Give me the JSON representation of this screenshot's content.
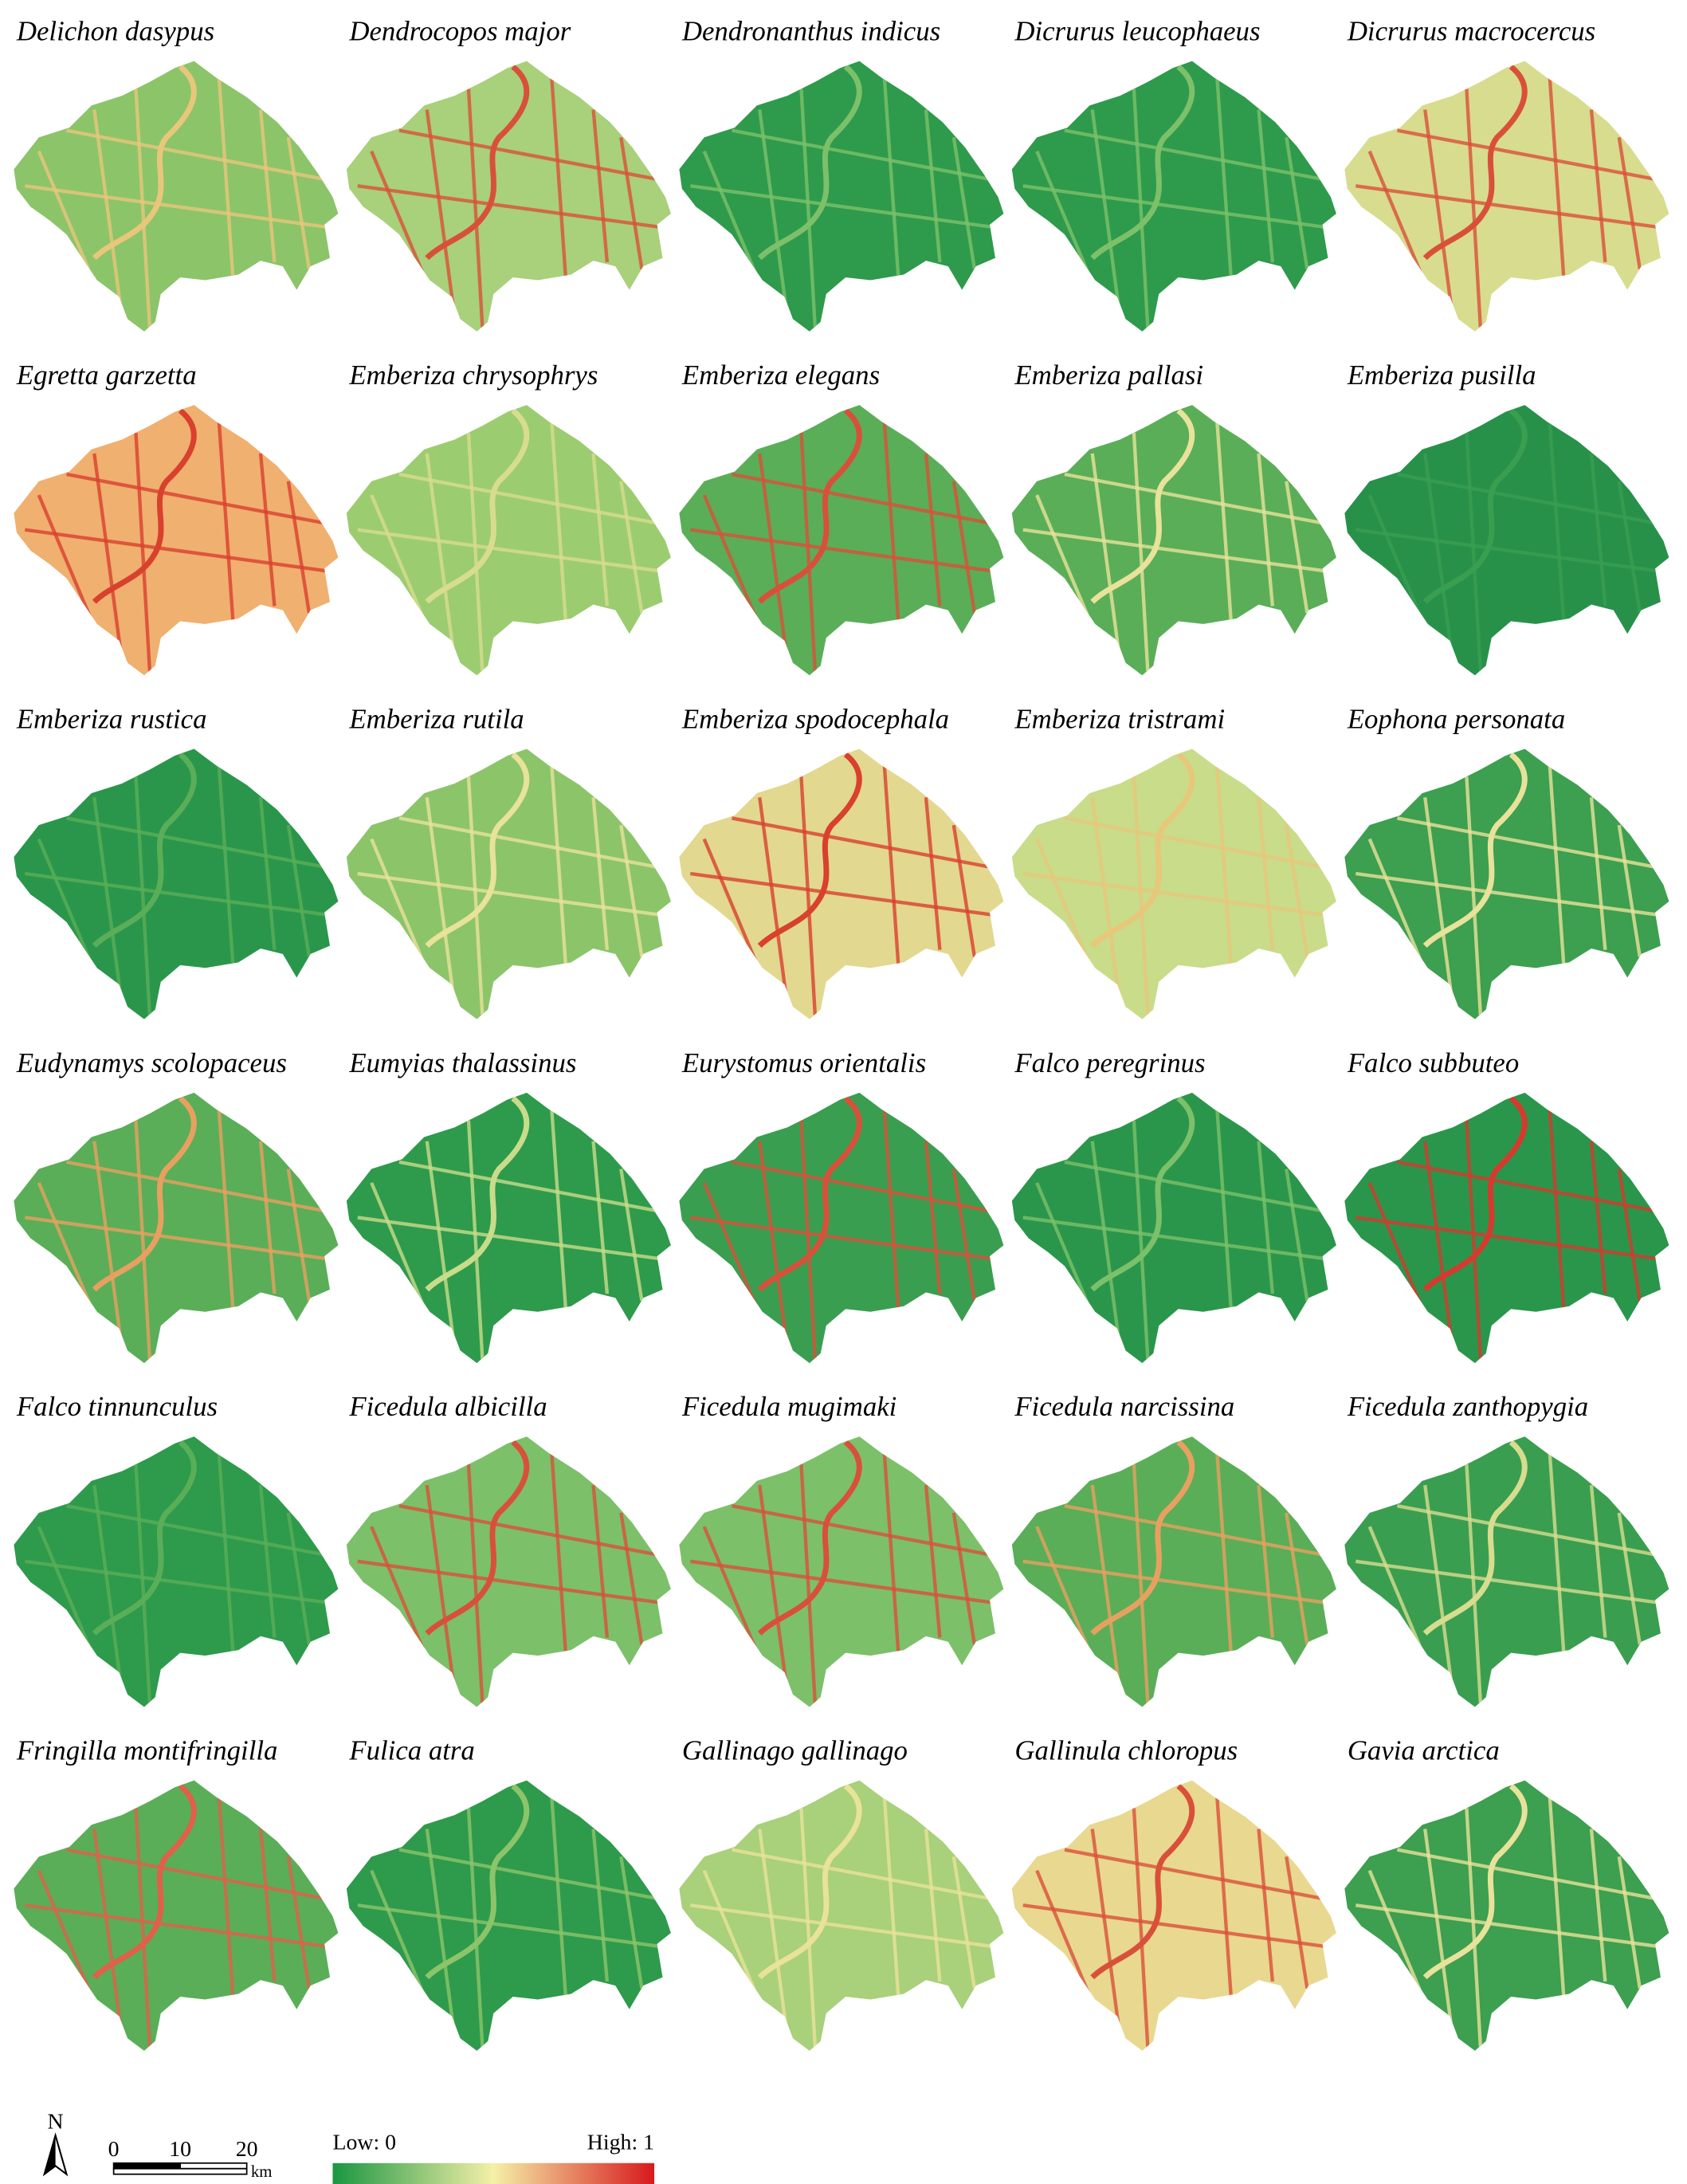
{
  "maps": [
    {
      "title": "Delichon dasypus",
      "color": "#8cc46a",
      "accent": "#e8c77a"
    },
    {
      "title": "Dendrocopos major",
      "color": "#a9d07a",
      "accent": "#d9503a"
    },
    {
      "title": "Dendronanthus indicus",
      "color": "#2e9a4c",
      "accent": "#7cc06a"
    },
    {
      "title": "Dicrurus leucophaeus",
      "color": "#2e9a4c",
      "accent": "#7cc06a"
    },
    {
      "title": "Dicrurus macrocercus",
      "color": "#d8dc8e",
      "accent": "#d9503a"
    },
    {
      "title": "Egretta garzetta",
      "color": "#f0b070",
      "accent": "#d9402e"
    },
    {
      "title": "Emberiza chrysophrys",
      "color": "#9ccc70",
      "accent": "#d8dc8e"
    },
    {
      "title": "Emberiza elegans",
      "color": "#5aae58",
      "accent": "#d9503a"
    },
    {
      "title": "Emberiza pallasi",
      "color": "#5aae58",
      "accent": "#e8e29a"
    },
    {
      "title": "Emberiza pusilla",
      "color": "#27914a",
      "accent": "#3a9e50"
    },
    {
      "title": "Emberiza rustica",
      "color": "#2a964b",
      "accent": "#5aae58"
    },
    {
      "title": "Emberiza rutila",
      "color": "#8cc46a",
      "accent": "#e8e29a"
    },
    {
      "title": "Emberiza spodocephala",
      "color": "#e2d890",
      "accent": "#d9402e"
    },
    {
      "title": "Emberiza tristrami",
      "color": "#c8dc8a",
      "accent": "#e8c77a"
    },
    {
      "title": "Eophona personata",
      "color": "#3d9f50",
      "accent": "#e8e29a"
    },
    {
      "title": "Eudynamys scolopaceus",
      "color": "#5aae58",
      "accent": "#e8a060"
    },
    {
      "title": "Eumyias thalassinus",
      "color": "#2e9a4c",
      "accent": "#c8dc8a"
    },
    {
      "title": "Eurystomus orientalis",
      "color": "#3a9e50",
      "accent": "#d9503a"
    },
    {
      "title": "Falco peregrinus",
      "color": "#2a964b",
      "accent": "#7cc06a"
    },
    {
      "title": "Falco subbuteo",
      "color": "#2a964b",
      "accent": "#d63a2e"
    },
    {
      "title": "Falco tinnunculus",
      "color": "#2e9a4c",
      "accent": "#5aae58"
    },
    {
      "title": "Ficedula albicilla",
      "color": "#7cc06a",
      "accent": "#d9503a"
    },
    {
      "title": "Ficedula mugimaki",
      "color": "#7cc06a",
      "accent": "#d9503a"
    },
    {
      "title": "Ficedula narcissina",
      "color": "#5aae58",
      "accent": "#e8a060"
    },
    {
      "title": "Ficedula zanthopygia",
      "color": "#3a9e50",
      "accent": "#d8dc8e"
    },
    {
      "title": "Fringilla montifringilla",
      "color": "#5aae58",
      "accent": "#e0604a"
    },
    {
      "title": "Fulica atra",
      "color": "#2e9a4c",
      "accent": "#8cc46a"
    },
    {
      "title": "Gallinago gallinago",
      "color": "#a9d07a",
      "accent": "#e8e29a"
    },
    {
      "title": "Gallinula chloropus",
      "color": "#e8d890",
      "accent": "#d9503a"
    },
    {
      "title": "Gavia arctica",
      "color": "#3d9f50",
      "accent": "#e8e29a"
    }
  ],
  "legend": {
    "north": "N",
    "scale_labels": [
      "0",
      "10",
      "20"
    ],
    "scale_unit": "km",
    "low": "Low: 0",
    "high": "High: 1"
  }
}
